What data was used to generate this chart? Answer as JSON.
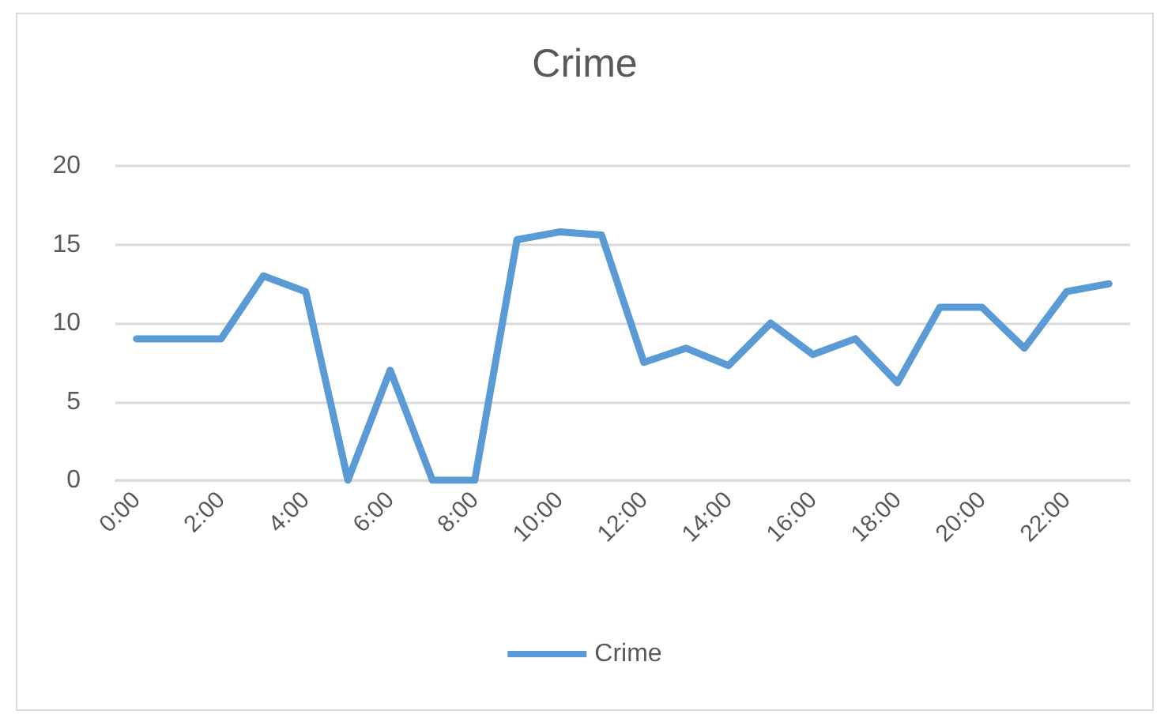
{
  "chart_data": {
    "type": "line",
    "title": "Crime",
    "categories": [
      "0:00",
      null,
      "2:00",
      null,
      "4:00",
      null,
      "6:00",
      null,
      "8:00",
      null,
      "10:00",
      null,
      "12:00",
      null,
      "14:00",
      null,
      "16:00",
      null,
      "18:00",
      null,
      "20:00",
      null,
      "22:00",
      null
    ],
    "series": [
      {
        "name": "Crime",
        "color": "#5b9bd5",
        "values": [
          9,
          9,
          9,
          13,
          12,
          0,
          7,
          0,
          0,
          15.3,
          15.8,
          15.6,
          7.5,
          8.4,
          7.3,
          10,
          8,
          9,
          6.2,
          11,
          11,
          8.4,
          12,
          12.5
        ]
      }
    ],
    "ylim": [
      0,
      20
    ],
    "yticks": [
      0,
      5,
      10,
      15,
      20
    ],
    "grid": "y",
    "legend": "bottom",
    "marker": "none",
    "line_style": "solid"
  }
}
